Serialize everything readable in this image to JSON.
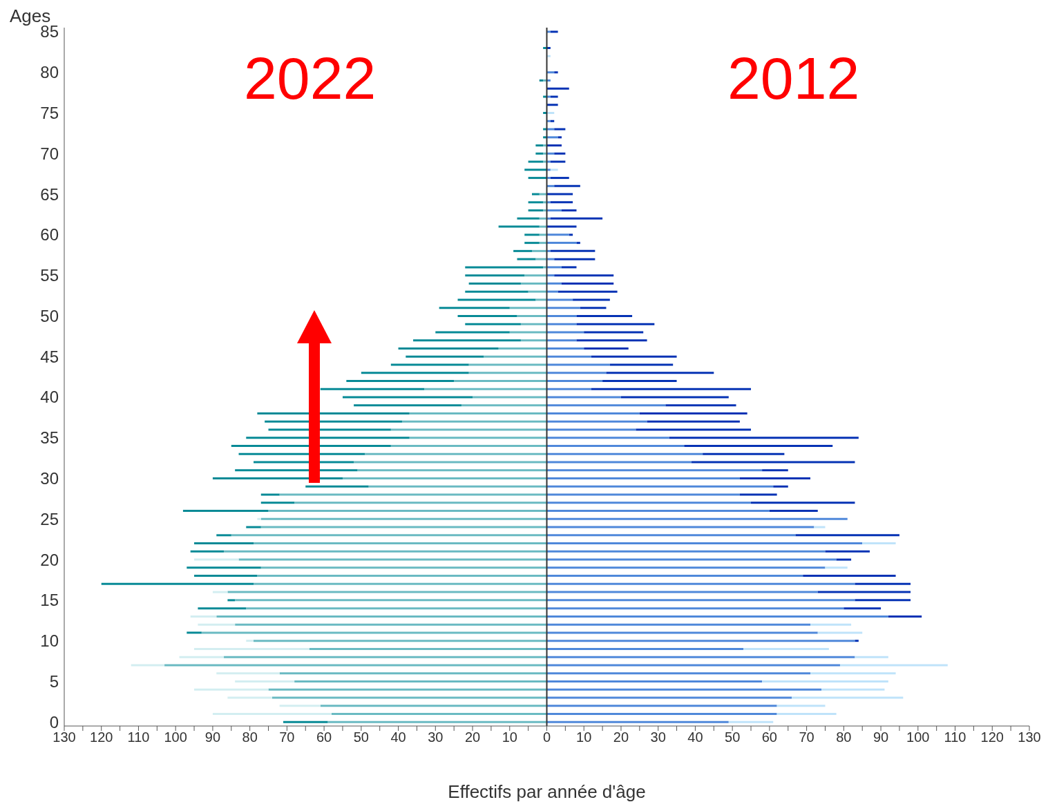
{
  "chart_data": {
    "type": "bar",
    "orientation": "horizontal",
    "stacked": true,
    "ylabel": "Ages",
    "xlabel": "Effectifs par année d'âge",
    "annotations": [
      "2022",
      "2012"
    ],
    "categories": [
      "85",
      null,
      null,
      null,
      null,
      "80",
      null,
      null,
      null,
      null,
      "75",
      null,
      null,
      null,
      null,
      "70",
      null,
      null,
      null,
      null,
      "65",
      null,
      null,
      null,
      null,
      "60",
      null,
      null,
      null,
      null,
      "55",
      null,
      null,
      null,
      null,
      "50",
      null,
      null,
      null,
      null,
      "45",
      null,
      null,
      null,
      null,
      "40",
      null,
      null,
      null,
      null,
      "35",
      null,
      null,
      null,
      null,
      "30",
      null,
      null,
      null,
      null,
      "25",
      null,
      null,
      null,
      null,
      "20",
      null,
      null,
      null,
      null,
      "15",
      null,
      null,
      null,
      null,
      "10",
      null,
      null,
      null,
      null,
      "5",
      null,
      null,
      null,
      null,
      "0"
    ],
    "xlim": [
      -130,
      130
    ],
    "xticks": [
      {
        "value": -130,
        "label": "130"
      },
      {
        "value": -125,
        "label": null
      },
      {
        "value": -120,
        "label": "120"
      },
      {
        "value": -115,
        "label": null
      },
      {
        "value": -110,
        "label": "110"
      },
      {
        "value": -105,
        "label": null
      },
      {
        "value": -100,
        "label": "100"
      },
      {
        "value": -95,
        "label": null
      },
      {
        "value": -90,
        "label": "90"
      },
      {
        "value": -85,
        "label": null
      },
      {
        "value": -80,
        "label": "80"
      },
      {
        "value": -75,
        "label": null
      },
      {
        "value": -70,
        "label": "70"
      },
      {
        "value": -65,
        "label": null
      },
      {
        "value": -60,
        "label": "60"
      },
      {
        "value": -55,
        "label": null
      },
      {
        "value": -50,
        "label": "50"
      },
      {
        "value": -45,
        "label": null
      },
      {
        "value": -40,
        "label": "40"
      },
      {
        "value": -35,
        "label": null
      },
      {
        "value": -30,
        "label": "30"
      },
      {
        "value": -25,
        "label": null
      },
      {
        "value": -20,
        "label": "20"
      },
      {
        "value": -15,
        "label": null
      },
      {
        "value": -10,
        "label": "10"
      },
      {
        "value": -5,
        "label": null
      },
      0,
      {
        "value": 5,
        "label": null
      },
      10,
      {
        "value": 15,
        "label": null
      },
      20,
      {
        "value": 25,
        "label": null
      },
      30,
      {
        "value": 35,
        "label": null
      },
      40,
      {
        "value": 45,
        "label": null
      },
      50,
      {
        "value": 55,
        "label": null
      },
      60,
      {
        "value": 65,
        "label": null
      },
      70,
      {
        "value": 75,
        "label": null
      },
      80,
      {
        "value": 85,
        "label": null
      },
      90,
      {
        "value": 95,
        "label": null
      },
      100,
      {
        "value": 105,
        "label": null
      },
      110,
      {
        "value": 115,
        "label": null
      },
      120,
      {
        "value": 125,
        "label": null
      },
      130
    ],
    "ref_lines": [
      {
        "axis": "x",
        "value": 0,
        "color": "#333333"
      }
    ],
    "series": [
      {
        "color": "#6abac2",
        "values": [
          null,
          null,
          null,
          null,
          null,
          null,
          -1,
          null,
          null,
          null,
          null,
          null,
          null,
          null,
          -1,
          -1,
          -1,
          null,
          null,
          null,
          -2,
          -1,
          -1,
          -2,
          -2,
          -2,
          -2,
          -4,
          -3,
          -1,
          -6,
          -7,
          -5,
          -3,
          -10,
          -8,
          -7,
          -10,
          -7,
          -13,
          -17,
          -21,
          -21,
          -25,
          -33,
          -20,
          -23,
          -37,
          -39,
          -42,
          -37,
          -42,
          -49,
          -52,
          -51,
          -55,
          -48,
          -72,
          -68,
          -75,
          -77,
          -77,
          -85,
          -79,
          -87,
          -83,
          -77,
          -78,
          -79,
          -86,
          -84,
          -81,
          -89,
          -84,
          -93,
          -79,
          -64,
          -87,
          -103,
          -72,
          -68,
          -75,
          -74,
          -61,
          -58,
          -59
        ]
      },
      {
        "color": "#078a96",
        "values": [
          null,
          null,
          -1,
          null,
          null,
          null,
          -1,
          null,
          -1,
          null,
          -1,
          null,
          -1,
          -1,
          -2,
          -2,
          -4,
          -6,
          -5,
          null,
          -2,
          -4,
          -4,
          -6,
          -11,
          -4,
          -4,
          -5,
          -5,
          -21,
          -16,
          -14,
          -17,
          -21,
          -19,
          -16,
          -15,
          -20,
          -29,
          -27,
          -21,
          -21,
          -29,
          -29,
          -28,
          -35,
          -29,
          -41,
          -37,
          -33,
          -44,
          -43,
          -34,
          -27,
          -33,
          -35,
          -17,
          -5,
          -9,
          -23,
          null,
          -4,
          -4,
          -16,
          -9,
          null,
          -20,
          -17,
          -41,
          null,
          -2,
          -13,
          null,
          null,
          -4,
          null,
          null,
          null,
          null,
          null,
          null,
          null,
          null,
          null,
          null,
          -12
        ]
      },
      {
        "color": "#d3eef1",
        "values": [
          null,
          null,
          null,
          null,
          null,
          null,
          null,
          null,
          null,
          null,
          null,
          null,
          null,
          null,
          null,
          null,
          null,
          null,
          null,
          null,
          null,
          null,
          null,
          null,
          null,
          null,
          null,
          null,
          null,
          null,
          null,
          null,
          null,
          null,
          null,
          null,
          null,
          null,
          null,
          null,
          null,
          null,
          null,
          null,
          null,
          null,
          null,
          null,
          null,
          null,
          null,
          null,
          null,
          null,
          null,
          null,
          null,
          null,
          null,
          null,
          -1,
          null,
          null,
          null,
          null,
          -12,
          null,
          null,
          null,
          -4,
          null,
          null,
          -7,
          -10,
          null,
          -2,
          -31,
          -12,
          -9,
          -17,
          -16,
          -20,
          -12,
          -11,
          -32,
          null
        ]
      },
      {
        "color": "#4f88da",
        "values": [
          1,
          null,
          null,
          null,
          null,
          2,
          1,
          null,
          1,
          null,
          null,
          1,
          2,
          3,
          null,
          2,
          1,
          1,
          1,
          2,
          null,
          1,
          4,
          1,
          null,
          6,
          8,
          1,
          2,
          4,
          2,
          4,
          3,
          7,
          9,
          8,
          8,
          10,
          8,
          10,
          12,
          17,
          16,
          15,
          12,
          20,
          32,
          25,
          27,
          24,
          33,
          37,
          42,
          39,
          58,
          52,
          61,
          52,
          55,
          60,
          81,
          72,
          67,
          85,
          75,
          78,
          75,
          69,
          83,
          73,
          83,
          80,
          92,
          71,
          73,
          83,
          53,
          83,
          79,
          71,
          58,
          74,
          66,
          62,
          62,
          49
        ]
      },
      {
        "color": "#0532b4",
        "values": [
          2,
          null,
          1,
          null,
          null,
          1,
          null,
          6,
          2,
          3,
          null,
          1,
          3,
          1,
          4,
          3,
          4,
          null,
          5,
          7,
          7,
          6,
          4,
          14,
          8,
          1,
          1,
          12,
          11,
          4,
          16,
          14,
          16,
          10,
          7,
          15,
          21,
          16,
          19,
          12,
          23,
          17,
          29,
          20,
          43,
          29,
          19,
          29,
          25,
          31,
          51,
          40,
          22,
          44,
          7,
          19,
          4,
          10,
          28,
          13,
          null,
          null,
          28,
          null,
          12,
          4,
          null,
          25,
          15,
          25,
          15,
          10,
          9,
          null,
          null,
          1,
          null,
          null,
          null,
          null,
          null,
          null,
          null,
          null,
          null,
          null
        ]
      },
      {
        "color": "#bfe3fa",
        "values": [
          null,
          null,
          null,
          1,
          null,
          null,
          null,
          null,
          null,
          null,
          2,
          null,
          null,
          null,
          null,
          null,
          null,
          2,
          null,
          null,
          null,
          null,
          null,
          null,
          null,
          null,
          null,
          null,
          null,
          null,
          null,
          null,
          null,
          null,
          null,
          null,
          null,
          null,
          null,
          null,
          null,
          null,
          null,
          null,
          null,
          null,
          null,
          null,
          null,
          null,
          null,
          null,
          null,
          null,
          null,
          null,
          null,
          null,
          null,
          null,
          null,
          3,
          null,
          9,
          null,
          null,
          6,
          null,
          null,
          null,
          null,
          null,
          null,
          11,
          12,
          null,
          23,
          9,
          29,
          23,
          34,
          17,
          30,
          13,
          16,
          12
        ]
      }
    ]
  }
}
